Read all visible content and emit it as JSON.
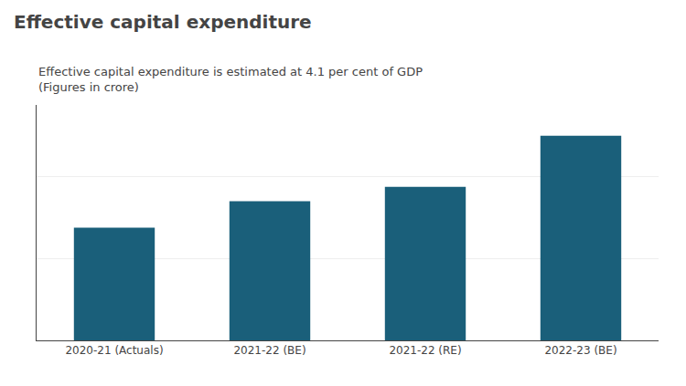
{
  "chart_data": {
    "type": "bar",
    "title": "Effective capital expenditure",
    "subtitle": [
      "Effective capital expenditure is estimated at 4.1 per cent of GDP",
      "(Figures in crore)"
    ],
    "categories": [
      "2020-21 (Actuals)",
      "2021-22 (BE)",
      "2021-22 (RE)",
      "2022-23 (BE)"
    ],
    "values": [
      5.5,
      6.8,
      7.5,
      10.0
    ],
    "color": "#1a5f7a",
    "ylim": [
      0,
      11.5
    ],
    "yticks": [
      4,
      8
    ],
    "grid": true,
    "tick_labels": "x"
  }
}
